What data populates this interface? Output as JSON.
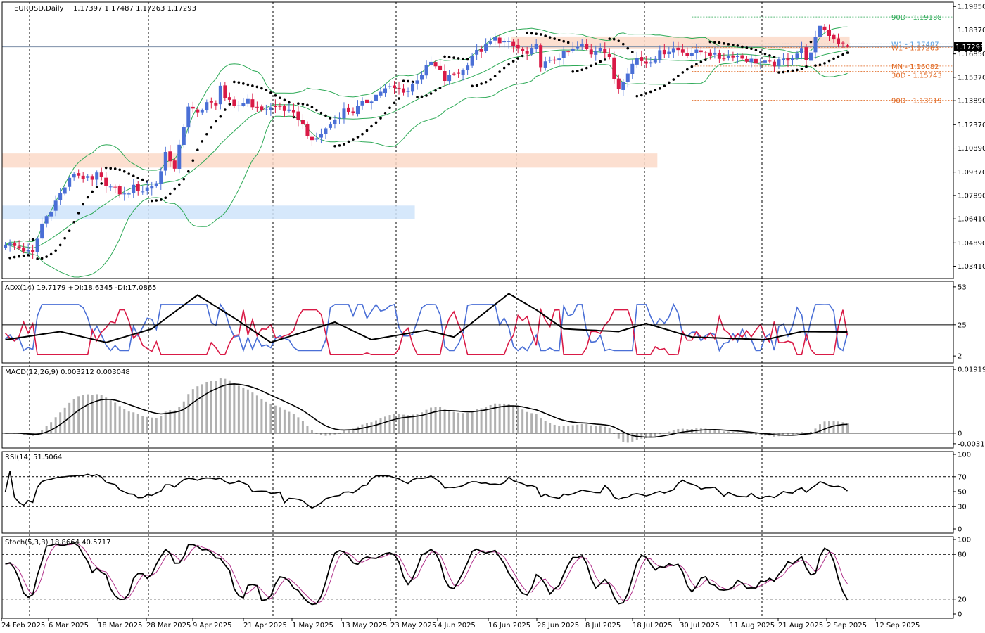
{
  "chart_data": {
    "type": "candlestick",
    "symbol_header": "EURUSD,Daily",
    "ohlc_header": "1.17397 1.17487 1.17263 1.17293",
    "current_price_label": "1.17293",
    "x_labels": [
      "24 Feb 2025",
      "6 Mar 2025",
      "18 Mar 2025",
      "28 Mar 2025",
      "9 Apr 2025",
      "21 Apr 2025",
      "1 May 2025",
      "13 May 2025",
      "23 May 2025",
      "4 Jun 2025",
      "16 Jun 2025",
      "26 Jun 2025",
      "8 Jul 2025",
      "18 Jul 2025",
      "30 Jul 2025",
      "11 Aug 2025",
      "21 Aug 2025",
      "2 Sep 2025",
      "12 Sep 2025"
    ],
    "main_panel": {
      "y_ticks": [
        "1.19850",
        "1.18370",
        "1.16850",
        "1.15370",
        "1.13890",
        "1.12370",
        "1.10890",
        "1.09370",
        "1.07890",
        "1.06410",
        "1.04890",
        "1.03410"
      ],
      "ylim": [
        1.029,
        1.1995
      ],
      "levels": [
        {
          "label": "90D - 1.19188",
          "value": 1.19188,
          "color": "#2eaa57"
        },
        {
          "label": "W1 - 1.17487",
          "value": 1.17487,
          "color": "#5aa0e0"
        },
        {
          "label": "W1 - 1.17263",
          "value": 1.17263,
          "color": "#e0661f"
        },
        {
          "label": "MN - 1.16082",
          "value": 1.16082,
          "color": "#e0661f"
        },
        {
          "label": "30D - 1.15743",
          "value": 1.15743,
          "color": "#e0661f"
        },
        {
          "label": "90D - 1.13919",
          "value": 1.13919,
          "color": "#e0661f"
        }
      ],
      "zones": [
        {
          "from_bar": 0,
          "to_bar": 142,
          "y1": 1.0965,
          "y2": 1.1055,
          "color": "#fbd9c8"
        },
        {
          "from_bar": 0,
          "to_bar": 89,
          "y1": 1.064,
          "y2": 1.0725,
          "color": "#cfe4fa"
        },
        {
          "from_bar": 111,
          "to_bar": 184,
          "y1": 1.172,
          "y2": 1.1795,
          "color": "#fbd9c8"
        }
      ],
      "up_color": "#4a6fd6",
      "down_color": "#d91a46",
      "bollinger_color": "#2eaa57"
    },
    "adx": {
      "label": "ADX(14) 19.7179 +DI:18.6345 -DI:17.0865",
      "y_ticks": [
        "53",
        "25",
        "2"
      ],
      "ylim": [
        0,
        55
      ],
      "level": 25,
      "colors": {
        "adx": "#000000",
        "plus_di": "#4a6fd6",
        "minus_di": "#d91a46"
      }
    },
    "macd": {
      "label": "MACD(12,26,9) 0.003212 0.003048",
      "y_ticks": [
        "0.01919",
        "0",
        "-0.003177"
      ],
      "ylim": [
        -0.0032,
        0.0192
      ],
      "colors": {
        "hist": "#b0b0b0",
        "signal": "#000000"
      }
    },
    "rsi": {
      "label": "RSI(14) 51.5064",
      "y_ticks": [
        "100",
        "70",
        "50",
        "30",
        "0"
      ],
      "ylim": [
        0,
        100
      ],
      "levels": [
        70,
        30
      ]
    },
    "stoch": {
      "label": "Stoch(5,3,3) 18.8664 40.5717",
      "y_ticks": [
        "100",
        "80",
        "20",
        "0"
      ],
      "ylim": [
        0,
        100
      ],
      "levels": [
        80,
        20
      ],
      "colors": {
        "k": "#000000",
        "d": "#b0308a"
      }
    }
  }
}
